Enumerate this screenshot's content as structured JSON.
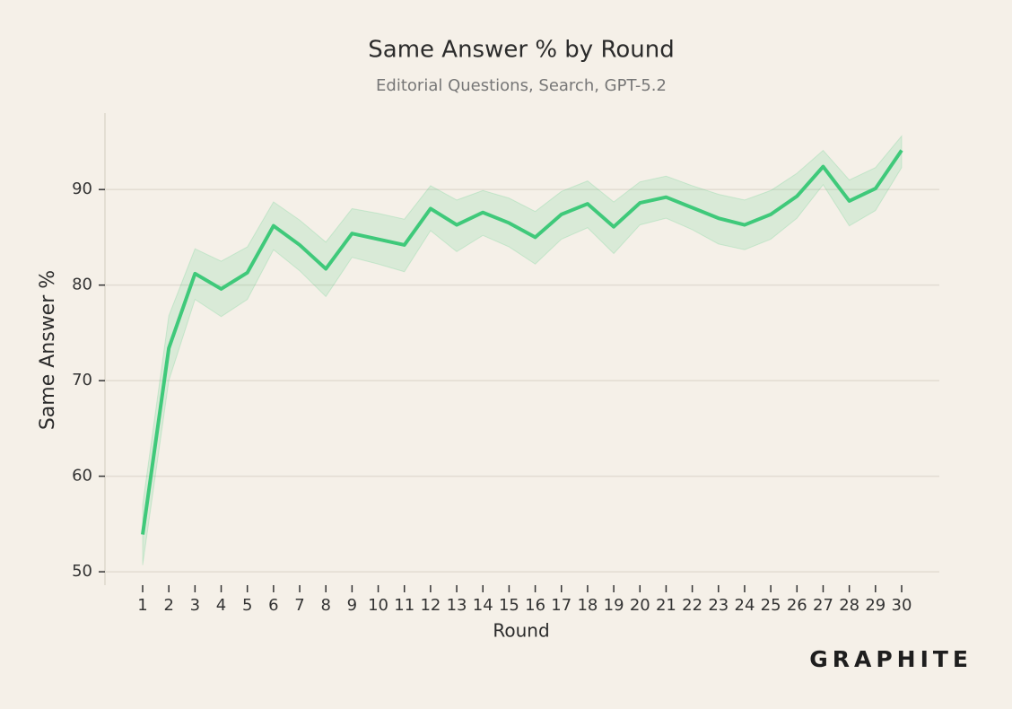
{
  "chart_data": {
    "type": "line",
    "title": "Same Answer % by Round",
    "subtitle": "Editorial Questions, Search, GPT-5.2",
    "x_label": "Round",
    "y_label": "Same Answer %",
    "logo": "GRAPHITE",
    "x": [
      1,
      2,
      3,
      4,
      5,
      6,
      7,
      8,
      9,
      10,
      11,
      12,
      13,
      14,
      15,
      16,
      17,
      18,
      19,
      20,
      21,
      22,
      23,
      24,
      25,
      26,
      27,
      28,
      29,
      30
    ],
    "series": [
      {
        "color": "#3fc97a",
        "values": [
          53.9,
          73.4,
          81.2,
          79.6,
          81.3,
          86.2,
          84.2,
          81.7,
          85.4,
          84.8,
          84.2,
          88.0,
          86.3,
          87.6,
          86.5,
          85.0,
          87.4,
          88.5,
          86.1,
          88.6,
          89.2,
          88.1,
          87.0,
          86.3,
          87.4,
          89.3,
          92.4,
          88.8,
          90.1,
          94.1
        ],
        "upper": [
          57.0,
          76.8,
          83.8,
          82.5,
          84.0,
          88.7,
          86.8,
          84.5,
          88.0,
          87.5,
          86.9,
          90.4,
          88.9,
          89.9,
          89.1,
          87.7,
          89.8,
          90.9,
          88.7,
          90.8,
          91.4,
          90.4,
          89.5,
          88.9,
          89.9,
          91.7,
          94.1,
          91.0,
          92.3,
          95.6
        ],
        "lower": [
          50.7,
          70.0,
          78.5,
          76.7,
          78.5,
          83.7,
          81.5,
          78.8,
          82.9,
          82.2,
          81.4,
          85.7,
          83.5,
          85.2,
          84.0,
          82.2,
          84.8,
          86.0,
          83.3,
          86.3,
          87.0,
          85.8,
          84.3,
          83.7,
          84.8,
          87.0,
          90.5,
          86.2,
          87.8,
          92.3
        ]
      }
    ],
    "xlim": [
      -0.44,
      31.44
    ],
    "ylim": [
      48.6,
      98
    ],
    "xticks": [
      1,
      2,
      3,
      4,
      5,
      6,
      7,
      8,
      9,
      10,
      11,
      12,
      13,
      14,
      15,
      16,
      17,
      18,
      19,
      20,
      21,
      22,
      23,
      24,
      25,
      26,
      27,
      28,
      29,
      30
    ],
    "yticks": [
      50,
      60,
      70,
      80,
      90
    ],
    "grid": true
  }
}
